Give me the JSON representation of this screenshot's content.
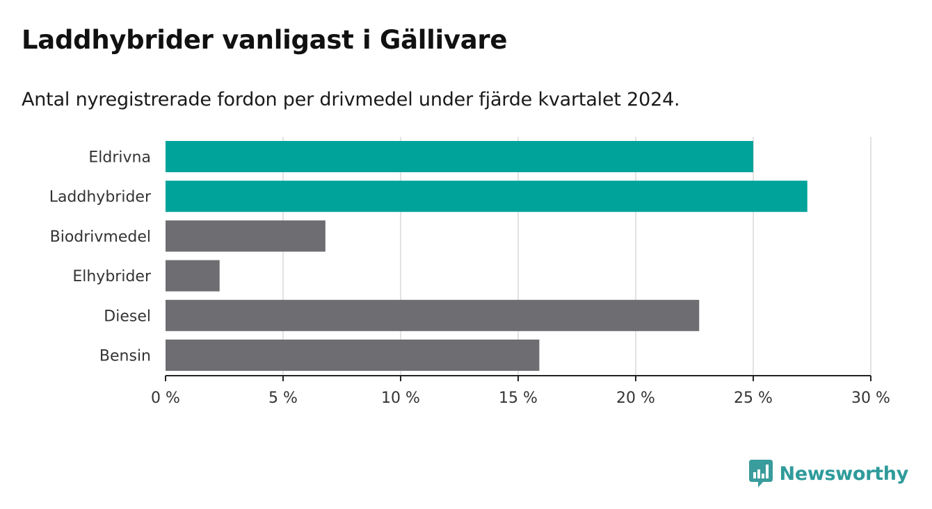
{
  "header": {
    "title": "Laddhybrider vanligast i Gällivare",
    "subtitle": "Antal nyregistrerade fordon per drivmedel under fjärde kvartalet 2024."
  },
  "brand": {
    "name": "Newsworthy",
    "icon": "newsworthy-logo-icon",
    "color": "#3a9c9c"
  },
  "colors": {
    "highlight": "#00a39a",
    "default": "#6e6d72",
    "grid": "#d9d9d9",
    "axis": "#222222"
  },
  "chart_data": {
    "type": "bar",
    "orientation": "horizontal",
    "categories": [
      "Eldrivna",
      "Laddhybrider",
      "Biodrivmedel",
      "Elhybrider",
      "Diesel",
      "Bensin"
    ],
    "values": [
      25.0,
      27.3,
      6.8,
      2.3,
      22.7,
      15.9
    ],
    "highlighted": [
      true,
      true,
      false,
      false,
      false,
      false
    ],
    "xlim": [
      0,
      30
    ],
    "xticks": [
      0,
      5,
      10,
      15,
      20,
      25,
      30
    ],
    "tick_labels": [
      "0 %",
      "5 %",
      "10 %",
      "15 %",
      "20 %",
      "25 %",
      "30 %"
    ],
    "grid": true
  }
}
